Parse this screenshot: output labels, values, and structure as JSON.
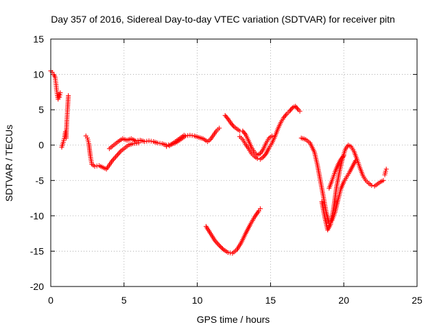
{
  "chart_data": {
    "type": "scatter",
    "title": "Day 357 of 2016, Sidereal Day-to-day VTEC variation (SDTVAR) for receiver pitn",
    "xlabel": "GPS time / hours",
    "ylabel": "SDTVAR / TECUs",
    "xlim": [
      0,
      25
    ],
    "ylim": [
      -20,
      15
    ],
    "xticks": [
      0,
      5,
      10,
      15,
      20,
      25
    ],
    "yticks": [
      -20,
      -15,
      -10,
      -5,
      0,
      5,
      10,
      15
    ],
    "grid": true,
    "marker": "+",
    "color": "#ff0000",
    "series": [
      {
        "values": [
          [
            0.0,
            10.5
          ],
          [
            0.1,
            10.3
          ],
          [
            0.2,
            10.0
          ],
          [
            0.3,
            9.6
          ],
          [
            0.35,
            8.8
          ],
          [
            0.4,
            7.8
          ],
          [
            0.45,
            7.0
          ],
          [
            0.5,
            6.5
          ],
          [
            0.55,
            7.2
          ],
          [
            0.6,
            6.8
          ],
          [
            0.65,
            7.4
          ]
        ]
      },
      {
        "values": [
          [
            0.75,
            -0.3
          ],
          [
            0.85,
            0.4
          ],
          [
            0.95,
            1.2
          ],
          [
            1.0,
            1.9
          ],
          [
            1.05,
            1.0
          ],
          [
            1.1,
            3.5
          ],
          [
            1.15,
            5.2
          ],
          [
            1.2,
            7.0
          ]
        ]
      },
      {
        "values": [
          [
            2.4,
            1.3
          ],
          [
            2.5,
            1.0
          ],
          [
            2.6,
            0.2
          ],
          [
            2.7,
            -1.5
          ],
          [
            2.8,
            -2.7
          ],
          [
            3.0,
            -3.0
          ],
          [
            3.3,
            -2.9
          ],
          [
            3.6,
            -3.2
          ],
          [
            3.8,
            -3.4
          ],
          [
            4.0,
            -2.8
          ],
          [
            4.2,
            -2.2
          ],
          [
            4.5,
            -1.5
          ],
          [
            4.8,
            -0.8
          ],
          [
            5.0,
            -0.5
          ],
          [
            5.3,
            0.0
          ],
          [
            5.6,
            0.2
          ],
          [
            6.0,
            0.3
          ]
        ]
      },
      {
        "values": [
          [
            4.0,
            -0.5
          ],
          [
            4.3,
            0.0
          ],
          [
            4.6,
            0.5
          ],
          [
            4.9,
            0.9
          ],
          [
            5.2,
            0.7
          ],
          [
            5.5,
            0.9
          ],
          [
            5.8,
            0.6
          ],
          [
            6.1,
            0.7
          ],
          [
            6.4,
            0.5
          ],
          [
            6.7,
            0.6
          ],
          [
            7.0,
            0.5
          ],
          [
            7.3,
            0.3
          ],
          [
            7.6,
            0.2
          ],
          [
            7.9,
            0.0
          ],
          [
            8.2,
            0.1
          ],
          [
            8.5,
            0.3
          ],
          [
            8.8,
            0.7
          ],
          [
            9.0,
            1.0
          ],
          [
            9.2,
            1.3
          ],
          [
            9.5,
            1.4
          ],
          [
            9.8,
            1.3
          ],
          [
            10.1,
            1.1
          ],
          [
            10.4,
            0.9
          ],
          [
            10.7,
            0.5
          ],
          [
            10.9,
            0.8
          ],
          [
            11.1,
            1.4
          ],
          [
            11.3,
            2.0
          ],
          [
            11.5,
            2.4
          ]
        ]
      },
      {
        "values": [
          [
            7.9,
            -0.2
          ],
          [
            8.1,
            -0.1
          ],
          [
            8.3,
            0.2
          ],
          [
            8.5,
            0.5
          ],
          [
            8.7,
            0.8
          ],
          [
            8.9,
            1.1
          ],
          [
            9.1,
            1.4
          ]
        ]
      },
      {
        "values": [
          [
            10.6,
            -11.5
          ],
          [
            10.9,
            -12.5
          ],
          [
            11.2,
            -13.5
          ],
          [
            11.5,
            -14.2
          ],
          [
            11.8,
            -14.8
          ],
          [
            12.1,
            -15.2
          ],
          [
            12.4,
            -15.3
          ],
          [
            12.7,
            -14.8
          ],
          [
            13.0,
            -13.8
          ],
          [
            13.3,
            -12.5
          ],
          [
            13.6,
            -11.3
          ],
          [
            13.9,
            -10.2
          ],
          [
            14.2,
            -9.3
          ],
          [
            14.3,
            -9.0
          ]
        ]
      },
      {
        "values": [
          [
            11.9,
            4.2
          ],
          [
            12.1,
            3.7
          ],
          [
            12.3,
            3.1
          ],
          [
            12.5,
            2.6
          ],
          [
            12.7,
            2.3
          ],
          [
            12.9,
            2.0
          ],
          [
            13.1,
            2.0
          ],
          [
            13.3,
            1.5
          ],
          [
            13.5,
            0.6
          ],
          [
            13.7,
            -0.3
          ],
          [
            13.9,
            -1.0
          ],
          [
            14.1,
            -1.4
          ],
          [
            14.3,
            -1.2
          ],
          [
            14.5,
            -0.6
          ],
          [
            14.7,
            0.3
          ],
          [
            14.9,
            1.0
          ],
          [
            15.1,
            1.3
          ]
        ]
      },
      {
        "values": [
          [
            12.9,
            1.2
          ],
          [
            13.1,
            0.8
          ],
          [
            13.3,
            0.1
          ],
          [
            13.5,
            -0.5
          ],
          [
            13.7,
            -1.2
          ],
          [
            13.9,
            -1.6
          ],
          [
            14.1,
            -1.9
          ],
          [
            14.3,
            -2.0
          ],
          [
            14.5,
            -1.7
          ],
          [
            14.7,
            -1.2
          ],
          [
            14.9,
            -0.4
          ],
          [
            15.1,
            0.3
          ],
          [
            15.3,
            1.2
          ],
          [
            15.5,
            2.3
          ],
          [
            15.7,
            3.2
          ],
          [
            15.9,
            3.9
          ],
          [
            16.1,
            4.4
          ],
          [
            16.3,
            4.8
          ],
          [
            16.5,
            5.3
          ],
          [
            16.7,
            5.5
          ],
          [
            16.9,
            5.0
          ],
          [
            17.0,
            4.8
          ]
        ]
      },
      {
        "values": [
          [
            17.1,
            1.0
          ],
          [
            17.4,
            0.8
          ],
          [
            17.7,
            0.3
          ],
          [
            18.0,
            -1.0
          ],
          [
            18.2,
            -2.8
          ],
          [
            18.4,
            -5.0
          ],
          [
            18.6,
            -7.2
          ],
          [
            18.8,
            -9.5
          ],
          [
            19.0,
            -11.0
          ],
          [
            19.2,
            -10.6
          ],
          [
            19.4,
            -9.5
          ],
          [
            19.6,
            -7.8
          ],
          [
            19.8,
            -6.2
          ],
          [
            20.0,
            -5.2
          ],
          [
            20.2,
            -4.5
          ],
          [
            20.4,
            -3.8
          ],
          [
            20.6,
            -3.0
          ],
          [
            20.8,
            -2.2
          ]
        ]
      },
      {
        "values": [
          [
            18.5,
            -8.0
          ],
          [
            18.7,
            -10.2
          ],
          [
            18.9,
            -12.0
          ],
          [
            19.1,
            -11.2
          ],
          [
            19.3,
            -9.0
          ],
          [
            19.5,
            -6.0
          ],
          [
            19.7,
            -3.8
          ],
          [
            19.9,
            -2.0
          ],
          [
            20.1,
            -0.6
          ],
          [
            20.3,
            0.0
          ],
          [
            20.5,
            -0.2
          ],
          [
            20.7,
            -0.9
          ],
          [
            20.9,
            -2.0
          ],
          [
            21.1,
            -3.2
          ],
          [
            21.3,
            -4.3
          ],
          [
            21.5,
            -5.0
          ],
          [
            21.7,
            -5.4
          ],
          [
            21.9,
            -5.7
          ],
          [
            22.1,
            -5.8
          ],
          [
            22.3,
            -5.5
          ],
          [
            22.5,
            -5.2
          ],
          [
            22.7,
            -5.0
          ]
        ]
      },
      {
        "values": [
          [
            19.0,
            -6.1
          ],
          [
            19.2,
            -5.0
          ],
          [
            19.4,
            -3.8
          ],
          [
            19.6,
            -2.8
          ],
          [
            19.8,
            -2.0
          ],
          [
            20.0,
            -1.5
          ]
        ]
      },
      {
        "values": [
          [
            22.8,
            -4.2
          ],
          [
            22.85,
            -3.7
          ],
          [
            22.9,
            -3.4
          ]
        ]
      }
    ]
  }
}
